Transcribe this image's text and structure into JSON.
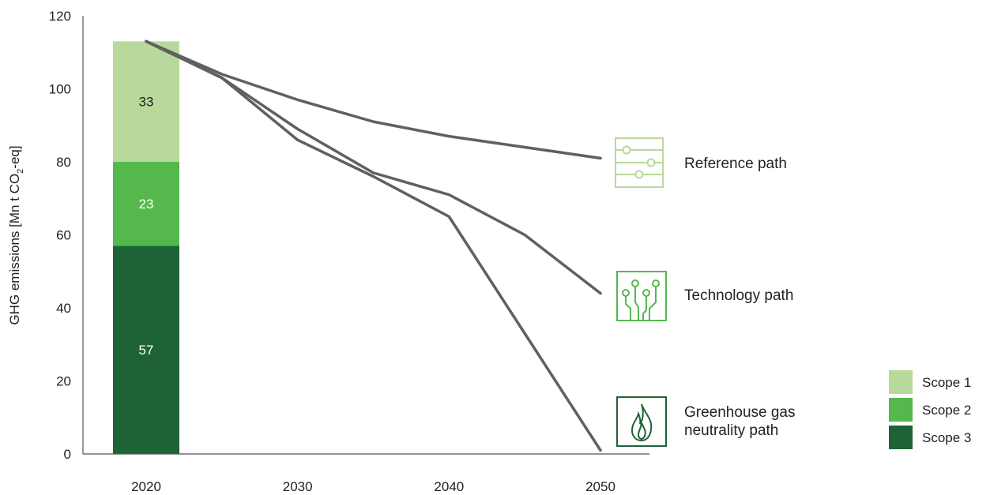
{
  "chart_data": {
    "type": "bar+line",
    "ylabel_parts": {
      "pre": "GHG emissions [Mn t CO",
      "sub": "2",
      "post": "-eq]"
    },
    "xlim": [
      2020,
      2050
    ],
    "ylim": [
      0,
      120
    ],
    "y_ticks": [
      0,
      20,
      40,
      60,
      80,
      100,
      120
    ],
    "x_ticks": [
      2020,
      2030,
      2040,
      2050
    ],
    "bar": {
      "x": 2020,
      "segments": [
        {
          "name": "Scope 3",
          "value": 57,
          "label": "57",
          "color": "#1e6336"
        },
        {
          "name": "Scope 2",
          "value": 23,
          "label": "23",
          "color": "#54b84c"
        },
        {
          "name": "Scope 1",
          "value": 33,
          "label": "33",
          "color": "#b8d99b"
        }
      ]
    },
    "lines": [
      {
        "name": "Reference path",
        "label_lines": [
          "Reference path"
        ],
        "icon": "sliders-icon",
        "icon_color": "#b8d99b",
        "color": "#606060",
        "x": [
          2020,
          2025,
          2030,
          2035,
          2040,
          2045,
          2050
        ],
        "y": [
          113,
          104,
          97,
          91,
          87,
          84,
          81
        ]
      },
      {
        "name": "Technology path",
        "label_lines": [
          "Technology path"
        ],
        "icon": "circuit-icon",
        "icon_color": "#54b84c",
        "color": "#606060",
        "x": [
          2020,
          2025,
          2030,
          2035,
          2040,
          2045,
          2050
        ],
        "y": [
          113,
          103,
          89,
          77,
          71,
          60,
          44
        ]
      },
      {
        "name": "Greenhouse gas neutrality path",
        "label_lines": [
          "Greenhouse gas",
          "neutrality path"
        ],
        "icon": "flame-icon",
        "icon_color": "#1e6336",
        "color": "#606060",
        "x": [
          2020,
          2025,
          2030,
          2035,
          2040,
          2045,
          2050
        ],
        "y": [
          113,
          103,
          86,
          76,
          65,
          33,
          1
        ]
      }
    ],
    "legend": [
      {
        "name": "Scope 1",
        "color": "#b8d99b"
      },
      {
        "name": "Scope 2",
        "color": "#54b84c"
      },
      {
        "name": "Scope 3",
        "color": "#1e6336"
      }
    ],
    "legend_position": "bottom-right",
    "grid": false
  }
}
